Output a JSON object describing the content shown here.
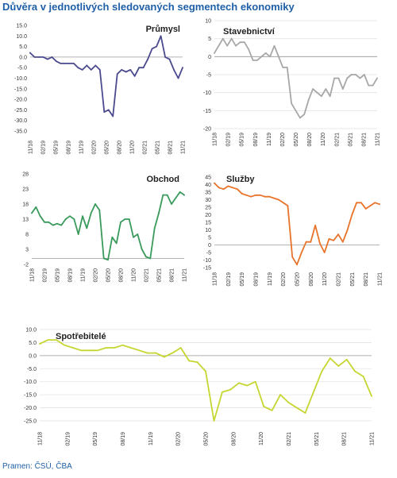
{
  "header": {
    "title": "Důvěra v jednotlivých sledovaných segmentech ekonomiky"
  },
  "footer": {
    "source": "Pramen: ČSÚ, ČBA"
  },
  "chart_data": [
    {
      "type": "line",
      "title": "Průmysl",
      "color": "#4b4a8e",
      "x_tick_labels": [
        "11/18",
        "02/19",
        "05/19",
        "08/19",
        "11/19",
        "02/20",
        "05/20",
        "08/20",
        "11/20",
        "02/21",
        "05/21",
        "08/21",
        "11/21"
      ],
      "ylim": [
        -35,
        15
      ],
      "y_ticks": [
        "15.0",
        "10.0",
        "5.0",
        "0.0",
        "-5.0",
        "-10.0",
        "-15.0",
        "-20.0",
        "-25.0",
        "-30.0",
        "-35.0"
      ],
      "y_values": [
        -35,
        -30,
        -25,
        -20,
        -15,
        -10,
        -5,
        0,
        5,
        10,
        15
      ],
      "series": [
        {
          "values": [
            2,
            0,
            0,
            0,
            -1,
            0,
            -2,
            -3,
            -3,
            -3,
            -3,
            -5,
            -6,
            -4,
            -6,
            -4,
            -6,
            -26,
            -25,
            -28,
            -8,
            -6,
            -7,
            -6,
            -9,
            -5,
            -5,
            -1,
            4,
            5,
            10,
            0,
            -1,
            -6,
            -10,
            -5
          ]
        }
      ]
    },
    {
      "type": "line",
      "title": "Stavebnictví",
      "color": "#a7a7a7",
      "x_tick_labels": [
        "11/18",
        "02/19",
        "05/19",
        "08/19",
        "11/19",
        "02/20",
        "05/20",
        "08/20",
        "11/20",
        "02/21",
        "05/21",
        "08/21",
        "11/21"
      ],
      "ylim": [
        -20,
        10
      ],
      "y_ticks": [
        "10",
        "5",
        "0",
        "-5",
        "-10",
        "-15",
        "-20"
      ],
      "y_values": [
        -20,
        -15,
        -10,
        -5,
        0,
        5,
        10
      ],
      "series": [
        {
          "values": [
            1,
            3,
            5,
            3,
            5,
            3,
            4,
            4,
            2,
            -1,
            -1,
            0,
            1,
            0,
            3,
            0,
            -3,
            -3,
            -13,
            -15,
            -17,
            -16,
            -12,
            -9,
            -10,
            -11,
            -9,
            -11,
            -6,
            -6,
            -9,
            -6,
            -5,
            -5,
            -6,
            -5,
            -8,
            -8,
            -6
          ]
        }
      ]
    },
    {
      "type": "line",
      "title": "Obchod",
      "color": "#3a9a5b",
      "x_tick_labels": [
        "11/18",
        "02/19",
        "05/19",
        "08/19",
        "11/19",
        "02/20",
        "05/20",
        "08/20",
        "11/20",
        "02/21",
        "05/21",
        "08/21",
        "11/21"
      ],
      "ylim": [
        -2,
        28
      ],
      "y_ticks": [
        "28",
        "23",
        "18",
        "13",
        "8",
        "3",
        "-2"
      ],
      "y_values": [
        -2,
        3,
        8,
        13,
        18,
        23,
        28
      ],
      "series": [
        {
          "values": [
            15,
            17,
            14,
            12,
            12,
            11,
            11.5,
            11,
            13,
            14,
            13,
            8,
            14,
            10,
            15,
            18,
            16,
            0,
            -0.5,
            7,
            5,
            12,
            13,
            13,
            7,
            8,
            3,
            0.5,
            0,
            10,
            15,
            21,
            21,
            18,
            20,
            22,
            21
          ]
        }
      ]
    },
    {
      "type": "line",
      "title": "Služby",
      "color": "#e8732b",
      "x_tick_labels": [
        "11/18",
        "02/19",
        "05/19",
        "08/19",
        "11/19",
        "02/20",
        "05/20",
        "08/20",
        "11/20",
        "02/21",
        "05/21",
        "08/21",
        "11/21"
      ],
      "ylim": [
        -15,
        45
      ],
      "y_ticks": [
        "45",
        "40",
        "35",
        "30",
        "25",
        "20",
        "15",
        "10",
        "5",
        "0",
        "-5",
        "-10",
        "-15"
      ],
      "y_values": [
        -15,
        -10,
        -5,
        0,
        5,
        10,
        15,
        20,
        25,
        30,
        35,
        40,
        45
      ],
      "series": [
        {
          "values": [
            41,
            38,
            37,
            39,
            38,
            37,
            34,
            33,
            32,
            33,
            33,
            32,
            32,
            31,
            30,
            28,
            26,
            -8,
            -13,
            -5,
            2,
            2,
            13,
            1,
            -5,
            4,
            3,
            7,
            2,
            10,
            20,
            28,
            28,
            24,
            26,
            28,
            27
          ]
        }
      ]
    },
    {
      "type": "line",
      "title": "Spotřebitelé",
      "color": "#c6d630",
      "x_tick_labels": [
        "11/18",
        "02/19",
        "05/19",
        "08/19",
        "11/19",
        "02/20",
        "05/20",
        "08/20",
        "11/20",
        "02/21",
        "05/21",
        "08/21",
        "11/21"
      ],
      "ylim": [
        -25,
        10
      ],
      "y_ticks": [
        "10.0",
        "5.0",
        "0.0",
        "-5.0",
        "-10.0",
        "-15.0",
        "-20.0",
        "-25.0"
      ],
      "y_values": [
        -25,
        -20,
        -15,
        -10,
        -5,
        0,
        5,
        10
      ],
      "series": [
        {
          "values": [
            4.5,
            6,
            6,
            4,
            3,
            2,
            2,
            2,
            3,
            3,
            4,
            3,
            2,
            1,
            1,
            -0.5,
            1,
            3,
            -2,
            -2.5,
            -6,
            -25,
            -14,
            -13,
            -10.5,
            -11.5,
            -10,
            -19.5,
            -21,
            -15,
            -18,
            -20,
            -22,
            -14,
            -6,
            -1,
            -4,
            -1.5,
            -6,
            -8,
            -15.5
          ]
        }
      ]
    }
  ]
}
